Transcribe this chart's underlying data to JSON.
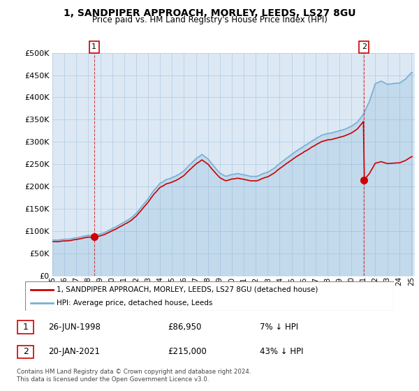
{
  "title": "1, SANDPIPER APPROACH, MORLEY, LEEDS, LS27 8GU",
  "subtitle": "Price paid vs. HM Land Registry's House Price Index (HPI)",
  "legend_line1": "1, SANDPIPER APPROACH, MORLEY, LEEDS, LS27 8GU (detached house)",
  "legend_line2": "HPI: Average price, detached house, Leeds",
  "table_rows": [
    {
      "num": "1",
      "date": "26-JUN-1998",
      "price": "£86,950",
      "pct": "7% ↓ HPI"
    },
    {
      "num": "2",
      "date": "20-JAN-2021",
      "price": "£215,000",
      "pct": "43% ↓ HPI"
    }
  ],
  "footnote": "Contains HM Land Registry data © Crown copyright and database right 2024.\nThis data is licensed under the Open Government Licence v3.0.",
  "property_color": "#cc0000",
  "hpi_color": "#7bafd4",
  "background_color": "#dce9f5",
  "ylim": [
    0,
    500000
  ],
  "yticks": [
    0,
    50000,
    100000,
    150000,
    200000,
    250000,
    300000,
    350000,
    400000,
    450000,
    500000
  ],
  "sale1_year": 1998.49,
  "sale1_price": 86950,
  "sale2_year": 2021.05,
  "sale2_price": 215000,
  "hpi_index_at_sale1": 1.0,
  "hpi_index_at_sale2": 1.0,
  "xtick_labels": [
    "95",
    "96",
    "97",
    "98",
    "99",
    "00",
    "01",
    "02",
    "03",
    "04",
    "05",
    "06",
    "07",
    "08",
    "09",
    "10",
    "11",
    "12",
    "13",
    "14",
    "15",
    "16",
    "17",
    "18",
    "19",
    "20",
    "21",
    "22",
    "23",
    "24",
    "25"
  ],
  "xtick_years": [
    1995,
    1996,
    1997,
    1998,
    1999,
    2000,
    2001,
    2002,
    2003,
    2004,
    2005,
    2006,
    2007,
    2008,
    2009,
    2010,
    2011,
    2012,
    2013,
    2014,
    2015,
    2016,
    2017,
    2018,
    2019,
    2020,
    2021,
    2022,
    2023,
    2024,
    2025
  ]
}
